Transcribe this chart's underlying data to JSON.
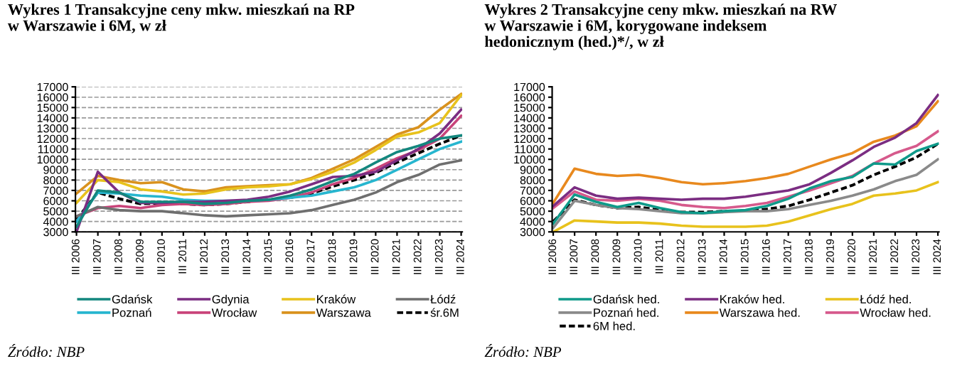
{
  "chart_data": [
    {
      "type": "line",
      "title": "Wykres 1 Transakcyjne ceny mkw. mieszkań na RP\nw Warszawie i 6M, w zł",
      "annotations": [
        "Źródło: NBP"
      ],
      "categories": [
        "III 2006",
        "III 2007",
        "III 2008",
        "III 2009",
        "III 2010",
        "III 2011",
        "III 2012",
        "III 2013",
        "III 2014",
        "III 2015",
        "III 2016",
        "III 2017",
        "III 2018",
        "III 2019",
        "III 2020",
        "III 2021",
        "III 2022",
        "III 2023",
        "III 2024"
      ],
      "ylim": [
        3000,
        17000
      ],
      "yticks": [
        3000,
        4000,
        5000,
        6000,
        7000,
        8000,
        9000,
        10000,
        11000,
        12000,
        13000,
        14000,
        15000,
        16000,
        17000
      ],
      "grid": "y",
      "legend": "bottom",
      "marker": "none",
      "series": [
        {
          "name": "Gdańsk",
          "color": "#13877e",
          "values": [
            3500,
            7000,
            6800,
            5900,
            5900,
            5900,
            5700,
            5800,
            6000,
            6100,
            6500,
            7100,
            7900,
            8600,
            9700,
            10700,
            11300,
            12000,
            12300
          ]
        },
        {
          "name": "Gdynia",
          "color": "#7b2d82",
          "values": [
            3000,
            8800,
            6800,
            5800,
            5800,
            5900,
            5900,
            6000,
            6100,
            6400,
            6900,
            7600,
            8300,
            8400,
            8800,
            9900,
            11000,
            12500,
            14800
          ]
        },
        {
          "name": "Kraków",
          "color": "#e8c21c",
          "values": [
            5800,
            8000,
            7800,
            7100,
            6900,
            6600,
            6700,
            7100,
            7300,
            7400,
            7600,
            8100,
            8800,
            9700,
            10900,
            12200,
            12600,
            13500,
            16200
          ]
        },
        {
          "name": "Łódź",
          "color": "#6f6f6f",
          "values": [
            4500,
            5400,
            5100,
            5000,
            5000,
            4800,
            4600,
            4500,
            4600,
            4700,
            4800,
            5100,
            5600,
            6100,
            6800,
            7800,
            8500,
            9500,
            9900
          ]
        },
        {
          "name": "Poznań",
          "color": "#27b6cf",
          "values": [
            4000,
            6800,
            6700,
            6500,
            6400,
            6100,
            6000,
            6000,
            6000,
            6100,
            6300,
            6500,
            6900,
            7300,
            8000,
            9000,
            10000,
            11000,
            11700
          ]
        },
        {
          "name": "Wrocław",
          "color": "#c9447a",
          "values": [
            4500,
            5300,
            5500,
            5300,
            5600,
            5700,
            5600,
            5700,
            5900,
            6000,
            6300,
            6800,
            7600,
            8200,
            9100,
            10100,
            10900,
            12000,
            14200
          ]
        },
        {
          "name": "Warszawa",
          "color": "#d9921e",
          "values": [
            6700,
            8400,
            8000,
            7700,
            7800,
            7100,
            6900,
            7300,
            7400,
            7500,
            7600,
            8200,
            9100,
            10000,
            11200,
            12400,
            13100,
            14800,
            16300
          ]
        },
        {
          "name": "śr.6M",
          "color": "#000000",
          "line_style": "dashed",
          "values": [
            4200,
            6800,
            6200,
            5700,
            5800,
            5700,
            5600,
            5700,
            5900,
            6100,
            6300,
            6700,
            7400,
            8000,
            8700,
            9700,
            10600,
            11500,
            12300
          ]
        }
      ]
    },
    {
      "type": "line",
      "title": "Wykres 2 Transakcyjne ceny mkw. mieszkań na RW\nw Warszawie i 6M, korygowane indeksem\nhedonicznym (hed.)*/, w zł",
      "annotations": [
        "Źródło: NBP"
      ],
      "categories": [
        "III 2006",
        "III 2007",
        "III 2008",
        "III 2009",
        "III 2010",
        "III 2011",
        "III 2012",
        "III 2013",
        "III 2014",
        "III 2015",
        "III 2016",
        "III 2017",
        "III 2018",
        "III 2019",
        "III 2020",
        "III 2021",
        "III 2022",
        "III 2023",
        "III 2024"
      ],
      "ylim": [
        3000,
        17000
      ],
      "yticks": [
        3000,
        4000,
        5000,
        6000,
        7000,
        8000,
        9000,
        10000,
        11000,
        12000,
        13000,
        14000,
        15000,
        16000,
        17000
      ],
      "legend": "bottom",
      "marker": "none",
      "series": [
        {
          "name": "Gdańsk hed.",
          "color": "#0f9a8a",
          "values": [
            3800,
            6600,
            5900,
            5400,
            5800,
            5300,
            4900,
            4800,
            5000,
            5100,
            5500,
            6200,
            7200,
            7900,
            8300,
            9600,
            9500,
            10800,
            11500
          ]
        },
        {
          "name": "Kraków hed.",
          "color": "#7b2d82",
          "values": [
            5500,
            7300,
            6500,
            6200,
            6300,
            6200,
            6100,
            6200,
            6200,
            6400,
            6700,
            7000,
            7600,
            8700,
            9900,
            11200,
            12100,
            13500,
            16200
          ]
        },
        {
          "name": "Łódź hed.",
          "color": "#e8c21c",
          "values": [
            3000,
            4100,
            4000,
            3900,
            3900,
            3800,
            3600,
            3500,
            3500,
            3500,
            3600,
            4000,
            4600,
            5200,
            5700,
            6500,
            6700,
            7000,
            7800
          ]
        },
        {
          "name": "Poznań hed.",
          "color": "#8a8a8a",
          "values": [
            3400,
            6000,
            5600,
            5300,
            5200,
            5000,
            4800,
            4800,
            4900,
            5000,
            5000,
            5200,
            5600,
            6000,
            6500,
            7100,
            7900,
            8500,
            10000
          ]
        },
        {
          "name": "Warszawa hed.",
          "color": "#e8891e",
          "values": [
            5800,
            9100,
            8600,
            8400,
            8500,
            8200,
            7800,
            7600,
            7700,
            7900,
            8200,
            8600,
            9300,
            10000,
            10600,
            11700,
            12300,
            13200,
            15600
          ]
        },
        {
          "name": "Wrocław hed.",
          "color": "#d65a8c",
          "values": [
            5300,
            6900,
            6100,
            6000,
            6200,
            6000,
            5600,
            5400,
            5300,
            5500,
            5800,
            6400,
            7000,
            7700,
            8400,
            9600,
            10600,
            11300,
            12700
          ]
        },
        {
          "name": "6M hed.",
          "color": "#000000",
          "line_style": "dashed",
          "values": [
            4000,
            6100,
            5600,
            5300,
            5400,
            5100,
            4900,
            4900,
            5000,
            5000,
            5200,
            5500,
            6100,
            6800,
            7500,
            8500,
            9300,
            10200,
            11500
          ]
        }
      ]
    }
  ]
}
